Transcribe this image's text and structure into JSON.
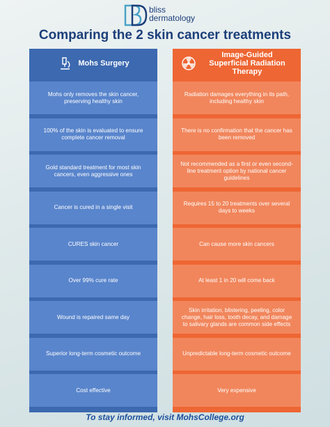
{
  "header": {
    "brand_line1": "bliss",
    "brand_line2": "dermatology",
    "title": "Comparing the 2 skin cancer treatments"
  },
  "columns": [
    {
      "title": "Mohs Surgery",
      "rows": [
        "Mohs only removes the skin cancer, preserving healthy skin",
        "100% of the skin is evaluated to ensure complete cancer removal",
        "Gold standard treatment for most skin cancers, even aggressive ones",
        "Cancer is cured in a single visit",
        "CURES skin cancer",
        "Over 99% cure rate",
        "Wound is repaired same day",
        "Superior long-term cosmetic outcome",
        "Cost effective"
      ]
    },
    {
      "title": "Image-Guided Superficial Radiation Therapy",
      "rows": [
        "Radiation damages everything in its path, including healthy skin",
        "There is no confirmation that the cancer has been removed",
        "Not recommended as a first or even second-line treatment option by national cancer guidelines",
        "Requires 15 to 20 treatments over several days to weeks",
        "Can cause more skin cancers",
        "At least 1 in 20 will come back",
        "Skin irritation, blistering, peeling, color change, hair loss, tooth decay, and damage to salivary glands are common side effects",
        "Unpredictable long-term cosmetic outcome",
        "Very expensive"
      ]
    }
  ],
  "footer": "To stay informed, visit MohsCollege.org"
}
